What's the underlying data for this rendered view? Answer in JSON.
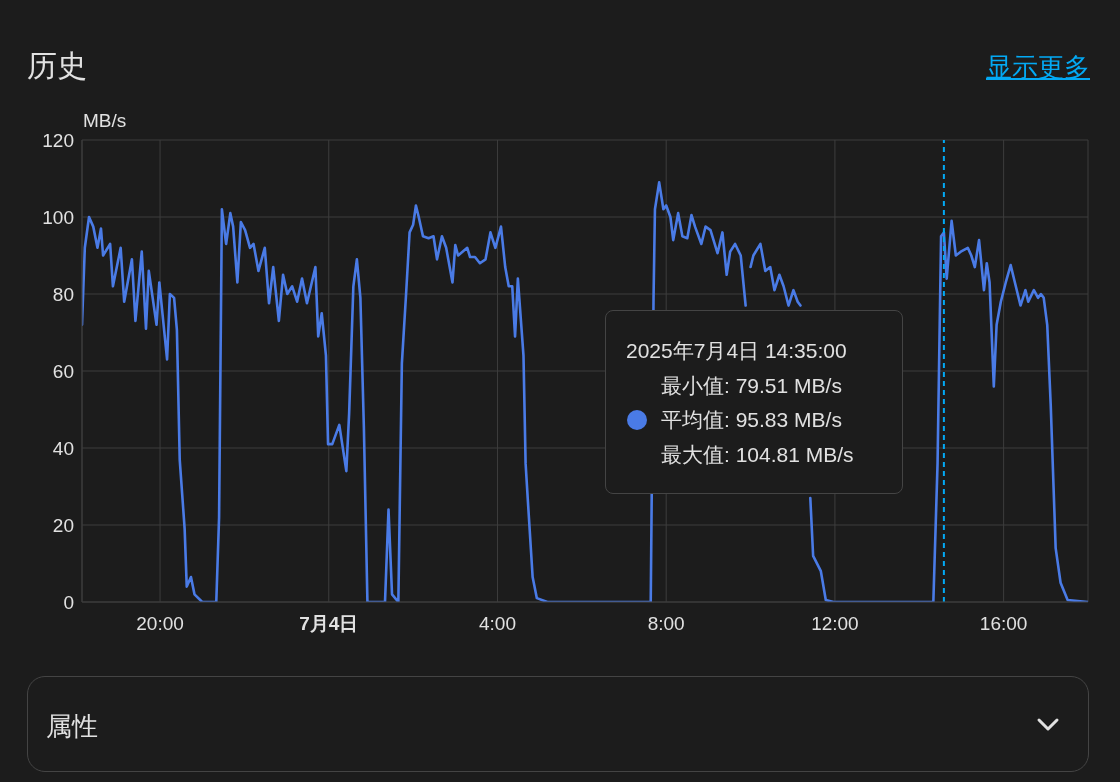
{
  "chart_data": {
    "type": "line",
    "title": "历史",
    "ylabel": "MB/s",
    "x": [
      "2025-07-03T18:09",
      "2025-07-03T18:13",
      "2025-07-03T18:19",
      "2025-07-03T18:25",
      "2025-07-03T18:31",
      "2025-07-03T18:36",
      "2025-07-03T18:39",
      "2025-07-03T18:49",
      "2025-07-03T18:53",
      "2025-07-03T19:04",
      "2025-07-03T19:09",
      "2025-07-03T19:20",
      "2025-07-03T19:25",
      "2025-07-03T19:34",
      "2025-07-03T19:40",
      "2025-07-03T19:44",
      "2025-07-03T19:55",
      "2025-07-03T19:59",
      "2025-07-03T20:10",
      "2025-07-03T20:14",
      "2025-07-03T20:20",
      "2025-07-03T20:24",
      "2025-07-03T20:28",
      "2025-07-03T20:35",
      "2025-07-03T20:38",
      "2025-07-03T20:44",
      "2025-07-03T20:49",
      "2025-07-03T21:00",
      "2025-07-03T21:20",
      "2025-07-03T21:24",
      "2025-07-03T21:28",
      "2025-07-03T21:34",
      "2025-07-03T21:40",
      "2025-07-03T21:44",
      "2025-07-03T21:50",
      "2025-07-03T21:55",
      "2025-07-03T22:01",
      "2025-07-03T22:08",
      "2025-07-03T22:13",
      "2025-07-03T22:20",
      "2025-07-03T22:29",
      "2025-07-03T22:35",
      "2025-07-03T22:41",
      "2025-07-03T22:49",
      "2025-07-03T22:55",
      "2025-07-03T23:01",
      "2025-07-03T23:08",
      "2025-07-03T23:15",
      "2025-07-03T23:22",
      "2025-07-03T23:29",
      "2025-07-03T23:41",
      "2025-07-03T23:45",
      "2025-07-03T23:50",
      "2025-07-03T23:56",
      "2025-07-03T23:59",
      "2025-07-04T00:05",
      "2025-07-04T00:15",
      "2025-07-04T00:25",
      "2025-07-04T00:29",
      "2025-07-04T00:35",
      "2025-07-04T00:40",
      "2025-07-04T00:45",
      "2025-07-04T00:50",
      "2025-07-04T00:55",
      "2025-07-04T01:20",
      "2025-07-04T01:25",
      "2025-07-04T01:30",
      "2025-07-04T01:39",
      "2025-07-04T01:44",
      "2025-07-04T01:50",
      "2025-07-04T01:55",
      "2025-07-04T02:00",
      "2025-07-04T02:04",
      "2025-07-04T02:08",
      "2025-07-04T02:14",
      "2025-07-04T02:22",
      "2025-07-04T02:29",
      "2025-07-04T02:34",
      "2025-07-04T02:41",
      "2025-07-04T02:47",
      "2025-07-04T02:56",
      "2025-07-04T03:00",
      "2025-07-04T03:04",
      "2025-07-04T03:17",
      "2025-07-04T03:21",
      "2025-07-04T03:28",
      "2025-07-04T03:35",
      "2025-07-04T03:43",
      "2025-07-04T03:50",
      "2025-07-04T03:57",
      "2025-07-04T04:05",
      "2025-07-04T04:11",
      "2025-07-04T04:16",
      "2025-07-04T04:21",
      "2025-07-04T04:25",
      "2025-07-04T04:29",
      "2025-07-04T04:37",
      "2025-07-04T04:40",
      "2025-07-04T04:43",
      "2025-07-04T04:50",
      "2025-07-04T04:56",
      "2025-07-04T05:11",
      "2025-07-04T07:35",
      "2025-07-04T07:38",
      "2025-07-04T07:42",
      "2025-07-04T07:44",
      "2025-07-04T07:50",
      "2025-07-04T07:56",
      "2025-07-04T08:00",
      "2025-07-04T08:06",
      "2025-07-04T08:10",
      "2025-07-04T08:17",
      "2025-07-04T08:23",
      "2025-07-04T08:30",
      "2025-07-04T08:36",
      "2025-07-04T08:41",
      "2025-07-04T08:50",
      "2025-07-04T08:56",
      "2025-07-04T09:03",
      "2025-07-04T09:13",
      "2025-07-04T09:20",
      "2025-07-04T09:26",
      "2025-07-04T09:31",
      "2025-07-04T09:38",
      "2025-07-04T09:46",
      "2025-07-04T09:53",
      "2025-07-04T09:56",
      "2025-07-04T10:00",
      "2025-07-04T10:04",
      "2025-07-04T10:14",
      "2025-07-04T10:21",
      "2025-07-04T10:28",
      "2025-07-04T10:34",
      "2025-07-04T10:41",
      "2025-07-04T10:47",
      "2025-07-04T10:54",
      "2025-07-04T11:01",
      "2025-07-04T11:07",
      "2025-07-04T11:11",
      "2025-07-04T11:18",
      "2025-07-04T11:25",
      "2025-07-04T11:29",
      "2025-07-04T11:40",
      "2025-07-04T11:47",
      "2025-07-04T11:58",
      "2025-07-04T14:20",
      "2025-07-04T14:26",
      "2025-07-04T14:31",
      "2025-07-04T14:35",
      "2025-07-04T14:39",
      "2025-07-04T14:46",
      "2025-07-04T14:52",
      "2025-07-04T14:59",
      "2025-07-04T15:09",
      "2025-07-04T15:14",
      "2025-07-04T15:19",
      "2025-07-04T15:25",
      "2025-07-04T15:32",
      "2025-07-04T15:36",
      "2025-07-04T15:40",
      "2025-07-04T15:46",
      "2025-07-04T15:50",
      "2025-07-04T15:56",
      "2025-07-04T16:03",
      "2025-07-04T16:10",
      "2025-07-04T16:16",
      "2025-07-04T16:24",
      "2025-07-04T16:31",
      "2025-07-04T16:35",
      "2025-07-04T16:43",
      "2025-07-04T16:49",
      "2025-07-04T16:53",
      "2025-07-04T16:57",
      "2025-07-04T17:02",
      "2025-07-04T17:07",
      "2025-07-04T17:14",
      "2025-07-04T17:21",
      "2025-07-04T17:31",
      "2025-07-04T18:00"
    ],
    "series": [
      {
        "color": "#4a7be6",
        "values": [
          72,
          92,
          100,
          97.5,
          92,
          97,
          90,
          93,
          82,
          92,
          78,
          89,
          73,
          91,
          71,
          86,
          72,
          83,
          63,
          80,
          79,
          70.6,
          37,
          19,
          4,
          6.5,
          2,
          0,
          0,
          22,
          102,
          93,
          101,
          97.5,
          83,
          98.7,
          96.6,
          92,
          93,
          86,
          92,
          77.6,
          87,
          73,
          85,
          80,
          82,
          78,
          84,
          77.6,
          87,
          69,
          75,
          64,
          41,
          41,
          46,
          34,
          49,
          82,
          89,
          79,
          45,
          0,
          0,
          24,
          2,
          0,
          62,
          80,
          96,
          98,
          103,
          100,
          95,
          94.5,
          95,
          89,
          95,
          92,
          83,
          92.7,
          90,
          92,
          89.6,
          89.6,
          88,
          89,
          96,
          92,
          97.5,
          87,
          82,
          82,
          69,
          84,
          64,
          36,
          27,
          6.5,
          1,
          0,
          0,
          0,
          79,
          102,
          109,
          102,
          103,
          100,
          94,
          101,
          95,
          94.5,
          100.5,
          97.5,
          93,
          97.5,
          96.6,
          90.6,
          96,
          85,
          91,
          93,
          90,
          77,
          null,
          87,
          90,
          93,
          86,
          87,
          81,
          85,
          82,
          77,
          81,
          78,
          77,
          null,
          27,
          12,
          8,
          0.5,
          0,
          0,
          36,
          95,
          96,
          84,
          99,
          90,
          91,
          92,
          90,
          87,
          94,
          81,
          88,
          83,
          56,
          72,
          78,
          83,
          87.5,
          83,
          77,
          81,
          78,
          81,
          79,
          80,
          79,
          72,
          51,
          14,
          5,
          0.5,
          0
        ]
      }
    ],
    "xlim": [
      "2025-07-03T18:09",
      "2025-07-04T18:00"
    ],
    "xticks": [
      {
        "value": "2025-07-03T20:00",
        "label": "20:00"
      },
      {
        "value": "2025-07-04T00:00",
        "label": "7月4日"
      },
      {
        "value": "2025-07-04T04:00",
        "label": "4:00"
      },
      {
        "value": "2025-07-04T08:00",
        "label": "8:00"
      },
      {
        "value": "2025-07-04T12:00",
        "label": "12:00"
      },
      {
        "value": "2025-07-04T16:00",
        "label": "16:00"
      }
    ],
    "ylim": [
      0,
      120
    ],
    "yticks": [
      0,
      20,
      40,
      60,
      80,
      100,
      120
    ],
    "grid": true,
    "ref_lines": [
      {
        "axis": "x",
        "value": "2025-07-04T14:35",
        "color": "#03a9f4",
        "line_style": "dashed"
      }
    ],
    "annotations": [
      "2025年7月4日 14:35:00",
      "最小值: 79.51 MB/s",
      "平均值: 95.83 MB/s",
      "最大值: 104.81 MB/s",
      "显示更多",
      "属性"
    ]
  }
}
